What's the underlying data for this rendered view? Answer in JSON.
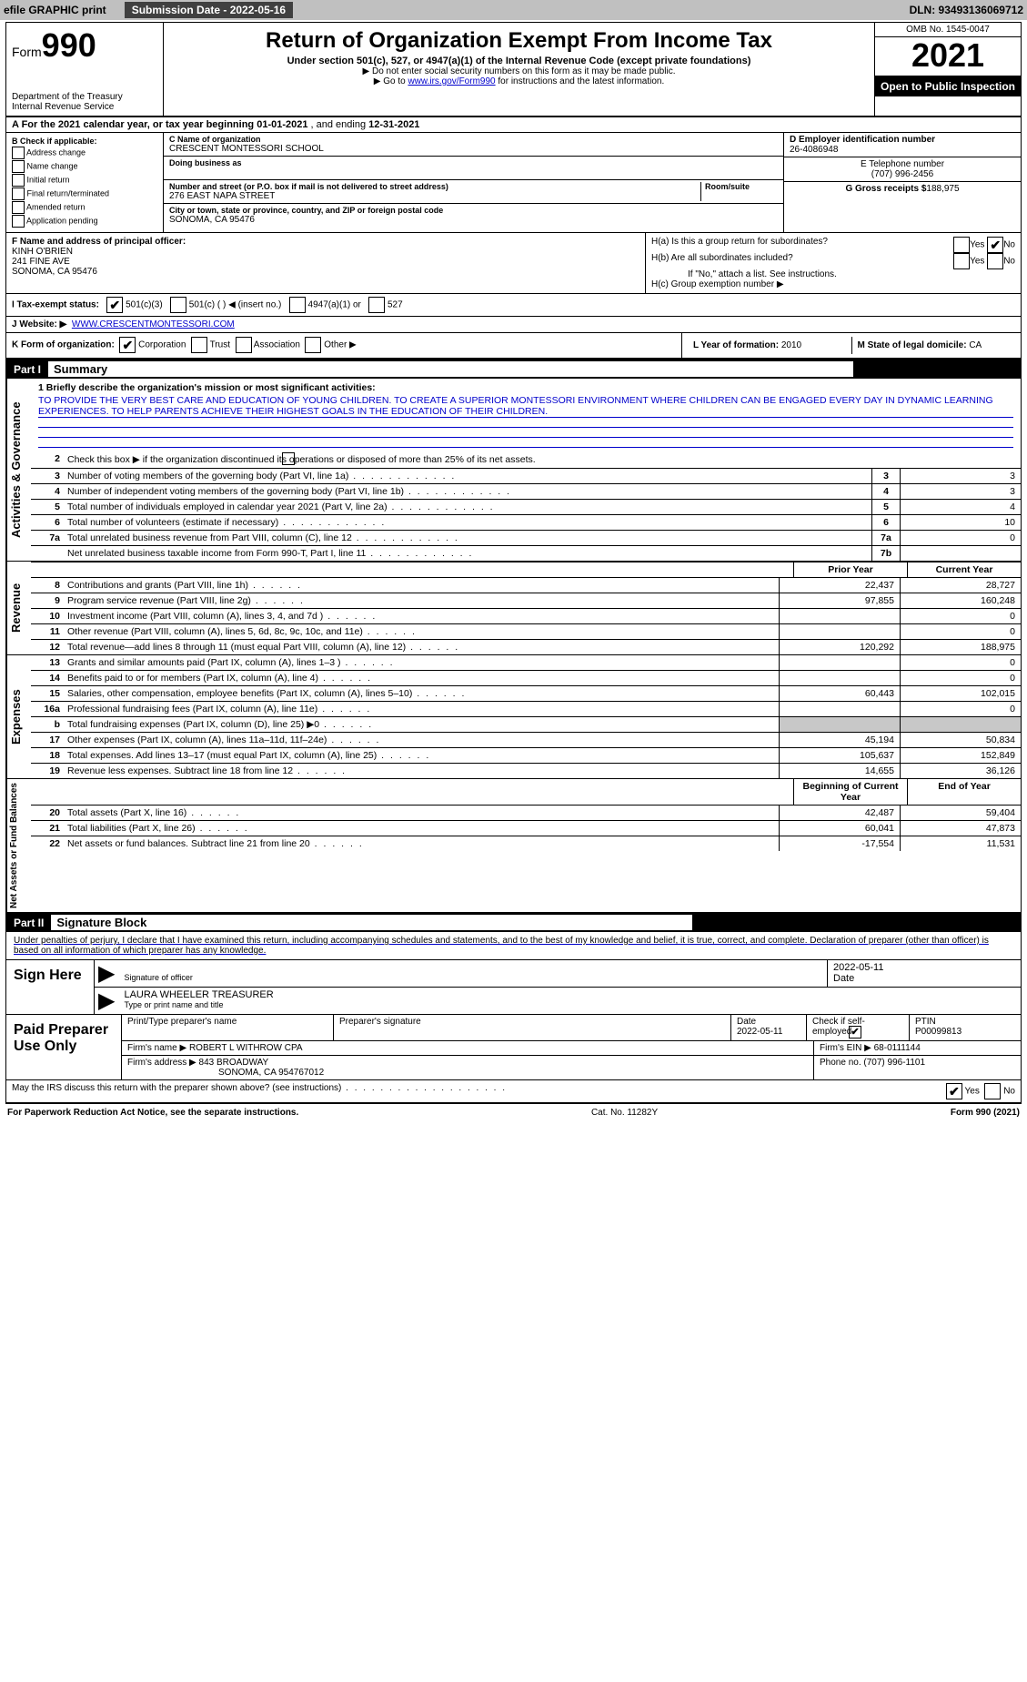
{
  "topbar": {
    "efile": "efile GRAPHIC print",
    "submission_label": "Submission Date - 2022-05-16",
    "dln_label": "DLN: 93493136069712"
  },
  "header": {
    "form_label": "Form",
    "form_num": "990",
    "dept": "Department of the Treasury",
    "irs": "Internal Revenue Service",
    "title": "Return of Organization Exempt From Income Tax",
    "sub": "Under section 501(c), 527, or 4947(a)(1) of the Internal Revenue Code (except private foundations)",
    "note1": "▶ Do not enter social security numbers on this form as it may be made public.",
    "note2_pre": "▶ Go to ",
    "note2_link": "www.irs.gov/Form990",
    "note2_post": " for instructions and the latest information.",
    "omb": "OMB No. 1545-0047",
    "taxyear": "2021",
    "opentopublic": "Open to Public Inspection"
  },
  "row_a": {
    "text_pre": "A For the 2021 calendar year, or tax year beginning ",
    "begin": "01-01-2021",
    "mid": "   , and ending ",
    "end": "12-31-2021"
  },
  "col_b": {
    "label": "B Check if applicable:",
    "c1": "Address change",
    "c2": "Name change",
    "c3": "Initial return",
    "c4": "Final return/terminated",
    "c5": "Amended return",
    "c6": "Application pending"
  },
  "col_c": {
    "name_label": "C Name of organization",
    "name": "CRESCENT MONTESSORI SCHOOL",
    "dba_label": "Doing business as",
    "addr_label": "Number and street (or P.O. box if mail is not delivered to street address)",
    "room_label": "Room/suite",
    "addr": "276 EAST NAPA STREET",
    "city_label": "City or town, state or province, country, and ZIP or foreign postal code",
    "city": "SONOMA, CA  95476"
  },
  "col_d": {
    "d_label": "D Employer identification number",
    "d_val": "26-4086948",
    "e_label": "E Telephone number",
    "e_val": "(707) 996-2456",
    "g_label": "G Gross receipts $",
    "g_val": "188,975"
  },
  "col_f": {
    "label": "F Name and address of principal officer:",
    "name": "KINH O'BRIEN",
    "addr1": "241 FINE AVE",
    "addr2": "SONOMA, CA  95476"
  },
  "col_h": {
    "ha": "H(a)  Is this a group return for subordinates?",
    "hb": "H(b)  Are all subordinates included?",
    "hb_note": "If \"No,\" attach a list. See instructions.",
    "hc": "H(c)  Group exemption number ▶",
    "yes": "Yes",
    "no": "No"
  },
  "row_i": {
    "label": "I  Tax-exempt status:",
    "c1": "501(c)(3)",
    "c2": "501(c) (   ) ◀ (insert no.)",
    "c3": "4947(a)(1) or",
    "c4": "527"
  },
  "row_j": {
    "label": "J  Website: ▶",
    "val": "WWW.CRESCENTMONTESSORI.COM"
  },
  "row_k": {
    "label": "K Form of organization:",
    "c1": "Corporation",
    "c2": "Trust",
    "c3": "Association",
    "c4": "Other ▶",
    "l_label": "L Year of formation:",
    "l_val": "2010",
    "m_label": "M State of legal domicile:",
    "m_val": "CA"
  },
  "part1": {
    "num": "Part I",
    "title": "Summary",
    "side1": "Activities & Governance",
    "side2": "Revenue",
    "side3": "Expenses",
    "side4": "Net Assets or Fund Balances",
    "l1_label": "1  Briefly describe the organization's mission or most significant activities:",
    "l1_text": "TO PROVIDE THE VERY BEST CARE AND EDUCATION OF YOUNG CHILDREN. TO CREATE A SUPERIOR MONTESSORI ENVIRONMENT WHERE CHILDREN CAN BE ENGAGED EVERY DAY IN DYNAMIC LEARNING EXPERIENCES. TO HELP PARENTS ACHIEVE THEIR HIGHEST GOALS IN THE EDUCATION OF THEIR CHILDREN.",
    "l2": "Check this box ▶     if the organization discontinued its operations or disposed of more than 25% of its net assets.",
    "rows_gov": [
      {
        "n": "3",
        "d": "Number of voting members of the governing body (Part VI, line 1a)",
        "b": "3",
        "v": "3"
      },
      {
        "n": "4",
        "d": "Number of independent voting members of the governing body (Part VI, line 1b)",
        "b": "4",
        "v": "3"
      },
      {
        "n": "5",
        "d": "Total number of individuals employed in calendar year 2021 (Part V, line 2a)",
        "b": "5",
        "v": "4"
      },
      {
        "n": "6",
        "d": "Total number of volunteers (estimate if necessary)",
        "b": "6",
        "v": "10"
      },
      {
        "n": "7a",
        "d": "Total unrelated business revenue from Part VIII, column (C), line 12",
        "b": "7a",
        "v": "0"
      },
      {
        "n": "",
        "d": "Net unrelated business taxable income from Form 990-T, Part I, line 11",
        "b": "7b",
        "v": ""
      }
    ],
    "prior": "Prior Year",
    "current": "Current Year",
    "rows_rev": [
      {
        "n": "8",
        "d": "Contributions and grants (Part VIII, line 1h)",
        "p": "22,437",
        "c": "28,727"
      },
      {
        "n": "9",
        "d": "Program service revenue (Part VIII, line 2g)",
        "p": "97,855",
        "c": "160,248"
      },
      {
        "n": "10",
        "d": "Investment income (Part VIII, column (A), lines 3, 4, and 7d )",
        "p": "",
        "c": "0"
      },
      {
        "n": "11",
        "d": "Other revenue (Part VIII, column (A), lines 5, 6d, 8c, 9c, 10c, and 11e)",
        "p": "",
        "c": "0"
      },
      {
        "n": "12",
        "d": "Total revenue—add lines 8 through 11 (must equal Part VIII, column (A), line 12)",
        "p": "120,292",
        "c": "188,975"
      }
    ],
    "rows_exp": [
      {
        "n": "13",
        "d": "Grants and similar amounts paid (Part IX, column (A), lines 1–3 )",
        "p": "",
        "c": "0"
      },
      {
        "n": "14",
        "d": "Benefits paid to or for members (Part IX, column (A), line 4)",
        "p": "",
        "c": "0"
      },
      {
        "n": "15",
        "d": "Salaries, other compensation, employee benefits (Part IX, column (A), lines 5–10)",
        "p": "60,443",
        "c": "102,015"
      },
      {
        "n": "16a",
        "d": "Professional fundraising fees (Part IX, column (A), line 11e)",
        "p": "",
        "c": "0"
      },
      {
        "n": "b",
        "d": "Total fundraising expenses (Part IX, column (D), line 25) ▶0",
        "p": "shade",
        "c": "shade"
      },
      {
        "n": "17",
        "d": "Other expenses (Part IX, column (A), lines 11a–11d, 11f–24e)",
        "p": "45,194",
        "c": "50,834"
      },
      {
        "n": "18",
        "d": "Total expenses. Add lines 13–17 (must equal Part IX, column (A), line 25)",
        "p": "105,637",
        "c": "152,849"
      },
      {
        "n": "19",
        "d": "Revenue less expenses. Subtract line 18 from line 12",
        "p": "14,655",
        "c": "36,126"
      }
    ],
    "begin": "Beginning of Current Year",
    "end": "End of Year",
    "rows_net": [
      {
        "n": "20",
        "d": "Total assets (Part X, line 16)",
        "p": "42,487",
        "c": "59,404"
      },
      {
        "n": "21",
        "d": "Total liabilities (Part X, line 26)",
        "p": "60,041",
        "c": "47,873"
      },
      {
        "n": "22",
        "d": "Net assets or fund balances. Subtract line 21 from line 20",
        "p": "-17,554",
        "c": "11,531"
      }
    ]
  },
  "part2": {
    "num": "Part II",
    "title": "Signature Block",
    "declaration": "Under penalties of perjury, I declare that I have examined this return, including accompanying schedules and statements, and to the best of my knowledge and belief, it is true, correct, and complete. Declaration of preparer (other than officer) is based on all information of which preparer has any knowledge.",
    "sign_here": "Sign Here",
    "sig_officer": "Signature of officer",
    "sig_date": "2022-05-11",
    "sig_date_label": "Date",
    "sig_name": "LAURA WHEELER  TREASURER",
    "sig_name_label": "Type or print name and title",
    "paid": "Paid Preparer Use Only",
    "prep_name_label": "Print/Type preparer's name",
    "prep_sig_label": "Preparer's signature",
    "prep_date_label": "Date",
    "prep_date": "2022-05-11",
    "prep_check_label": "Check        if self-employed",
    "prep_ptin_label": "PTIN",
    "prep_ptin": "P00099813",
    "firm_name_label": "Firm's name     ▶",
    "firm_name": "ROBERT L WITHROW CPA",
    "firm_ein_label": "Firm's EIN ▶",
    "firm_ein": "68-0111144",
    "firm_addr_label": "Firm's address ▶",
    "firm_addr1": "843 BROADWAY",
    "firm_addr2": "SONOMA, CA  954767012",
    "firm_phone_label": "Phone no.",
    "firm_phone": "(707) 996-1101",
    "discuss": "May the IRS discuss this return with the preparer shown above? (see instructions)"
  },
  "footer": {
    "left": "For Paperwork Reduction Act Notice, see the separate instructions.",
    "mid": "Cat. No. 11282Y",
    "right": "Form 990 (2021)"
  }
}
